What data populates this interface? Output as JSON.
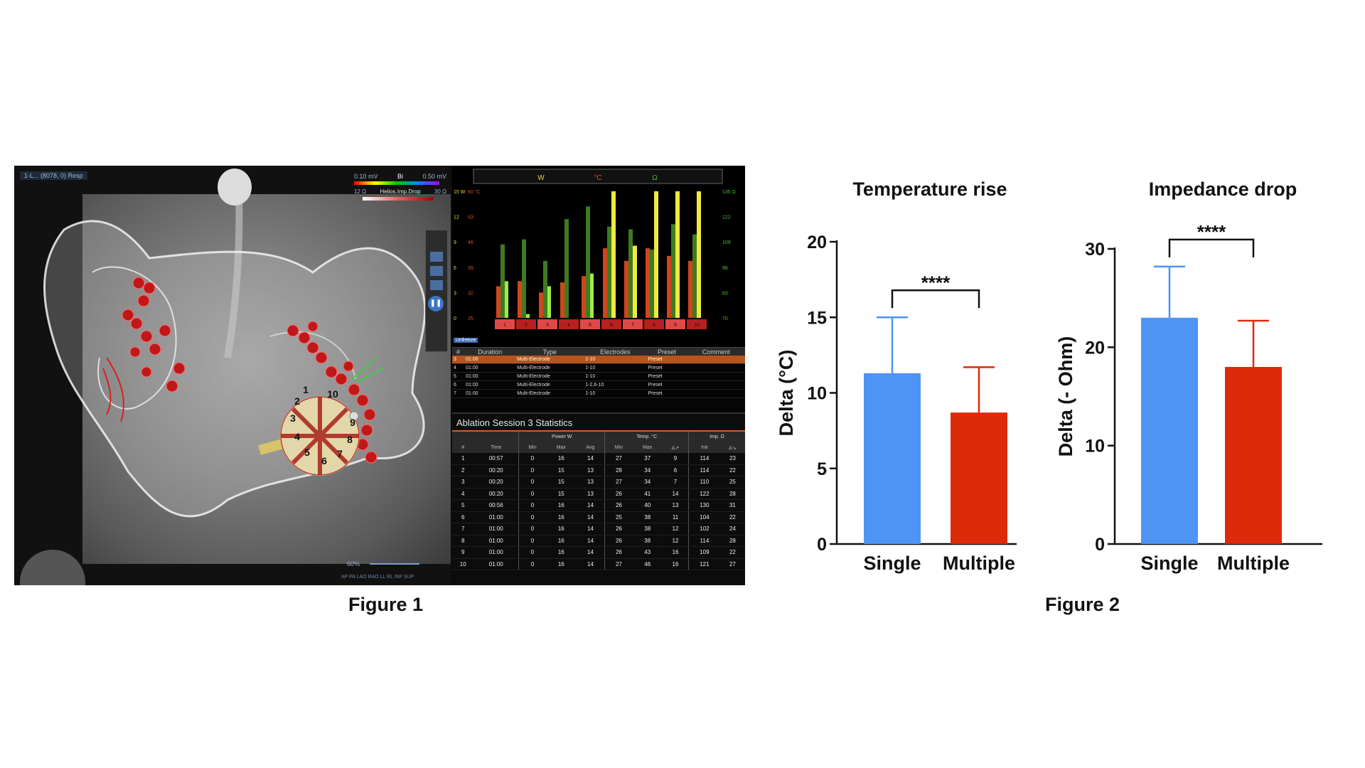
{
  "figure1": {
    "caption": "Figure 1",
    "map_header": "1-L... (8078, 0) Resp",
    "voltage_scale": {
      "min": "0.10 mV",
      "mode": "Bi",
      "max": "0.50 mV"
    },
    "impedance_scale": {
      "min": "12 Ω",
      "label": "Helios.Imp.Drop",
      "max": "30 Ω"
    },
    "zoom": "60%",
    "view_labels": "AP PA LAO RAO LL RL INF SUP",
    "electrode_numbers": [
      "1",
      "2",
      "3",
      "4",
      "5",
      "6",
      "7",
      "8",
      "9",
      "10"
    ],
    "bar_monitor": {
      "headers": {
        "power": "W",
        "temp": "°C",
        "imp": "Ω"
      },
      "left_axis_w": [
        "15 W",
        "12",
        "9",
        "6",
        "3",
        "0"
      ],
      "left_axis_c": [
        "60 °C",
        "53",
        "46",
        "39",
        "32",
        "25"
      ],
      "right_axis_ohm": [
        "135 Ω",
        "122",
        "109",
        "96",
        "83",
        "70"
      ],
      "electrodes": [
        "1",
        "2",
        "3",
        "4",
        "5",
        "6",
        "7",
        "8",
        "9",
        "10"
      ],
      "unfreeze": "Unfreeze",
      "temp_rise": [
        0.25,
        0.29,
        0.2,
        0.28,
        0.33,
        0.55,
        0.45,
        0.55,
        0.49,
        0.45
      ],
      "power_dark": [
        0.58,
        0.62,
        0.45,
        0.78,
        0.88,
        0.72,
        0.7,
        0.54,
        0.74,
        0.66
      ],
      "power_light": [
        0.29,
        0.03,
        0.25,
        0.0,
        0.35,
        1.0,
        0.14,
        0.26,
        0.35,
        0.31
      ],
      "imp_yellow": [
        0.0,
        0.0,
        0.0,
        0.0,
        0.0,
        1.0,
        0.57,
        1.0,
        1.0,
        1.0
      ]
    },
    "event_table": {
      "columns": [
        "#",
        "Duration",
        "Type",
        "Electrodes",
        "Preset",
        "Comment"
      ],
      "rows": [
        {
          "n": "3",
          "duration": "01:00",
          "type": "Multi-Electrode",
          "electrodes": "1-10",
          "preset": "Preset",
          "comment": ""
        },
        {
          "n": "4",
          "duration": "01:00",
          "type": "Multi-Electrode",
          "electrodes": "1-10",
          "preset": "Preset",
          "comment": ""
        },
        {
          "n": "5",
          "duration": "01:00",
          "type": "Multi-Electrode",
          "electrodes": "1-10",
          "preset": "Preset",
          "comment": ""
        },
        {
          "n": "6",
          "duration": "01:00",
          "type": "Multi-Electrode",
          "electrodes": "1-2,6-10",
          "preset": "Preset",
          "comment": ""
        },
        {
          "n": "7",
          "duration": "01:00",
          "type": "Multi-Electrode",
          "electrodes": "1-10",
          "preset": "Preset",
          "comment": ""
        }
      ]
    },
    "stats": {
      "title": "Ablation Session 3 Statistics",
      "group_headers": {
        "power": "Power W",
        "temp": "Temp. °C",
        "imp": "Imp. Ω"
      },
      "sub_headers": [
        "#",
        "Time",
        "Min",
        "Max",
        "Avg",
        "Min",
        "Max",
        "Δ↗",
        "Init",
        "Δ↘"
      ],
      "rows": [
        [
          "1",
          "00:57",
          "0",
          "16",
          "14",
          "27",
          "37",
          "9",
          "114",
          "23"
        ],
        [
          "2",
          "00:20",
          "0",
          "15",
          "13",
          "28",
          "34",
          "6",
          "114",
          "22"
        ],
        [
          "3",
          "00:20",
          "0",
          "15",
          "13",
          "27",
          "34",
          "7",
          "110",
          "25"
        ],
        [
          "4",
          "00:20",
          "0",
          "15",
          "13",
          "26",
          "41",
          "14",
          "122",
          "28"
        ],
        [
          "5",
          "00:56",
          "0",
          "16",
          "14",
          "26",
          "40",
          "13",
          "130",
          "31"
        ],
        [
          "6",
          "01:00",
          "0",
          "16",
          "14",
          "25",
          "38",
          "11",
          "104",
          "22"
        ],
        [
          "7",
          "01:00",
          "0",
          "16",
          "14",
          "26",
          "38",
          "12",
          "102",
          "24"
        ],
        [
          "8",
          "01:00",
          "0",
          "16",
          "14",
          "26",
          "38",
          "12",
          "114",
          "28"
        ],
        [
          "9",
          "01:00",
          "0",
          "16",
          "14",
          "26",
          "43",
          "16",
          "109",
          "22"
        ],
        [
          "10",
          "01:00",
          "0",
          "16",
          "14",
          "27",
          "46",
          "16",
          "121",
          "27"
        ]
      ]
    }
  },
  "figure2": {
    "caption": "Figure 2",
    "colors": {
      "single": "#4d94f5",
      "multiple": "#dd2a0a"
    },
    "chart_data": [
      {
        "type": "bar",
        "title": "Temperature rise",
        "ylabel": "Delta (°C)",
        "categories": [
          "Single",
          "Multiple"
        ],
        "values": [
          11.3,
          8.7
        ],
        "errors": [
          3.7,
          3.0
        ],
        "ylim": [
          0,
          20
        ],
        "yticks": [
          "0",
          "5",
          "10",
          "15",
          "20"
        ],
        "significance": "****"
      },
      {
        "type": "bar",
        "title": "Impedance drop",
        "ylabel": "Delta (- Ohm)",
        "categories": [
          "Single",
          "Multiple"
        ],
        "values": [
          23.0,
          18.0
        ],
        "errors": [
          5.2,
          4.7
        ],
        "ylim": [
          0,
          30
        ],
        "yticks": [
          "0",
          "10",
          "20",
          "30"
        ],
        "significance": "****"
      }
    ]
  }
}
